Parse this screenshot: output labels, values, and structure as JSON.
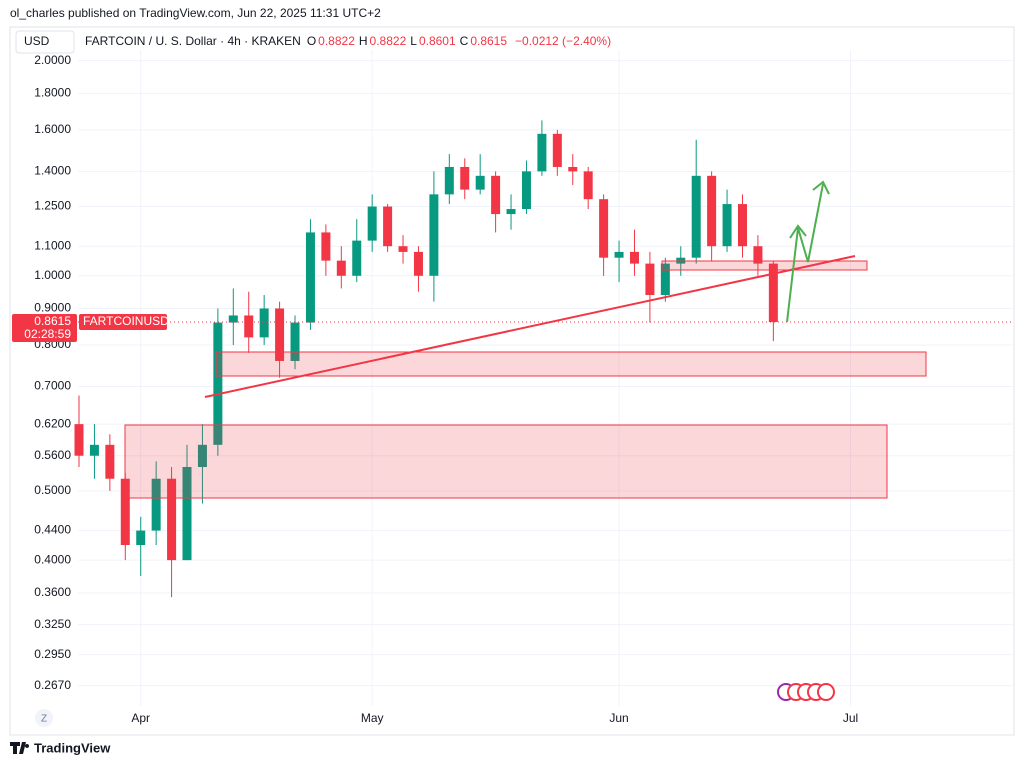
{
  "header": {
    "publisher": "ol_charles published on TradingView.com, Jun 22, 2025 11:31 UTC+2",
    "currency": "USD",
    "symbol": "FARTCOIN / U. S. Dollar · 4h · KRAKEN",
    "open_label": "O",
    "open": 0.8822,
    "high_label": "H",
    "high": 0.8822,
    "low_label": "L",
    "low": 0.8601,
    "close_label": "C",
    "close": 0.8615,
    "change": "−0.0212 (−2.40%)"
  },
  "chart_data": {
    "type": "candlestick",
    "log_scale": true,
    "grid": true,
    "up_color": "#089981",
    "down_color": "#f23645",
    "categories": [
      null,
      null,
      null,
      null,
      "Apr",
      null,
      null,
      null,
      null,
      null,
      null,
      null,
      null,
      null,
      null,
      null,
      null,
      null,
      null,
      "May",
      null,
      null,
      null,
      null,
      null,
      null,
      null,
      null,
      null,
      null,
      null,
      null,
      null,
      null,
      null,
      "Jun",
      null,
      null,
      null,
      null,
      null,
      null,
      null,
      null,
      null,
      null,
      null,
      null,
      null,
      null,
      "Jul",
      null,
      null,
      null,
      null,
      null,
      null,
      null,
      null,
      null,
      null
    ],
    "open": [
      0.62,
      0.56,
      0.58,
      0.52,
      0.42,
      0.44,
      0.52,
      0.4,
      0.54,
      0.58,
      0.86,
      0.88,
      0.82,
      0.9,
      0.76,
      0.86,
      1.15,
      1.05,
      1.0,
      1.12,
      1.25,
      1.1,
      1.08,
      1.0,
      1.3,
      1.42,
      1.32,
      1.38,
      1.22,
      1.24,
      1.4,
      1.58,
      1.42,
      1.4,
      1.28,
      1.06,
      1.08,
      1.04,
      0.94,
      1.04,
      1.06,
      1.38,
      1.1,
      1.26,
      1.1,
      1.04,
      null,
      null,
      null,
      null,
      null,
      null,
      null,
      null,
      null,
      null,
      null,
      null,
      null,
      null,
      null
    ],
    "high": [
      0.68,
      0.62,
      0.6,
      0.53,
      0.46,
      0.55,
      0.54,
      0.58,
      0.62,
      0.9,
      0.96,
      0.95,
      0.94,
      0.92,
      0.88,
      1.2,
      1.18,
      1.1,
      1.2,
      1.3,
      1.26,
      1.14,
      1.1,
      1.4,
      1.48,
      1.46,
      1.48,
      1.4,
      1.3,
      1.45,
      1.65,
      1.6,
      1.48,
      1.42,
      1.3,
      1.12,
      1.16,
      1.08,
      1.06,
      1.1,
      1.55,
      1.4,
      1.32,
      1.3,
      1.14,
      1.05,
      null,
      null,
      null,
      null,
      null,
      null,
      null,
      null,
      null,
      null,
      null,
      null,
      null,
      null,
      null
    ],
    "low": [
      0.54,
      0.52,
      0.5,
      0.4,
      0.38,
      0.42,
      0.355,
      0.4,
      0.48,
      0.56,
      0.8,
      0.78,
      0.8,
      0.72,
      0.74,
      0.84,
      1.0,
      0.96,
      0.98,
      1.08,
      1.08,
      1.04,
      0.95,
      0.92,
      1.26,
      1.28,
      1.3,
      1.15,
      1.16,
      1.22,
      1.38,
      1.38,
      1.34,
      1.24,
      1.0,
      0.98,
      1.0,
      0.86,
      0.92,
      1.0,
      1.04,
      1.05,
      1.08,
      1.06,
      1.0,
      0.81,
      null,
      null,
      null,
      null,
      null,
      null,
      null,
      null,
      null,
      null,
      null,
      null,
      null,
      null,
      null
    ],
    "close": [
      0.56,
      0.58,
      0.52,
      0.42,
      0.44,
      0.52,
      0.4,
      0.54,
      0.58,
      0.86,
      0.88,
      0.82,
      0.9,
      0.76,
      0.86,
      1.15,
      1.05,
      1.0,
      1.12,
      1.25,
      1.1,
      1.08,
      1.0,
      1.3,
      1.42,
      1.32,
      1.38,
      1.22,
      1.24,
      1.4,
      1.58,
      1.42,
      1.4,
      1.28,
      1.06,
      1.08,
      1.04,
      0.94,
      1.04,
      1.06,
      1.38,
      1.1,
      1.26,
      1.1,
      1.04,
      0.8615,
      null,
      null,
      null,
      null,
      null,
      null,
      null,
      null,
      null,
      null,
      null,
      null,
      null,
      null,
      null
    ],
    "ylim": [
      0.25,
      2.07
    ],
    "yticks": [
      {
        "value": 2,
        "label": "2.0000"
      },
      {
        "value": 1.8,
        "label": "1.8000"
      },
      {
        "value": 1.6,
        "label": "1.6000"
      },
      {
        "value": 1.4,
        "label": "1.4000"
      },
      {
        "value": 1.25,
        "label": "1.2500"
      },
      {
        "value": 1.1,
        "label": "1.1000"
      },
      {
        "value": 1,
        "label": "1.0000"
      },
      {
        "value": 0.9,
        "label": "0.9000"
      },
      {
        "value": 0.8,
        "label": "0.8000"
      },
      {
        "value": 0.7,
        "label": "0.7000"
      },
      {
        "value": 0.62,
        "label": "0.6200"
      },
      {
        "value": 0.56,
        "label": "0.5600"
      },
      {
        "value": 0.5,
        "label": "0.5000"
      },
      {
        "value": 0.44,
        "label": "0.4400"
      },
      {
        "value": 0.4,
        "label": "0.4000"
      },
      {
        "value": 0.36,
        "label": "0.3600"
      },
      {
        "value": 0.325,
        "label": "0.3250"
      },
      {
        "value": 0.295,
        "label": "0.2950"
      },
      {
        "value": 0.267,
        "label": "0.2670"
      }
    ],
    "last_price": 0.8615,
    "countdown": "02:28:59",
    "ticker": "FARTCOINUSD"
  },
  "footer": {
    "scale_button": "Z",
    "brand": "TradingView"
  }
}
